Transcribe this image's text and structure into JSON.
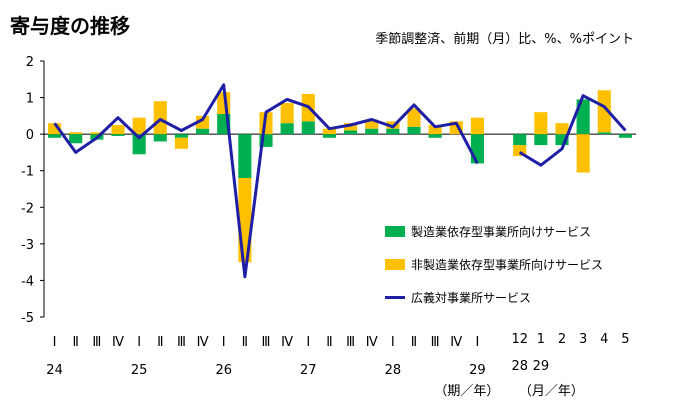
{
  "chart_data": {
    "type": "bar",
    "title": "寄与度の推移",
    "subtitle": "季節調整済、前期（月）比、%、%ポイント",
    "ylim": [
      -5,
      2
    ],
    "yticks": [
      "2",
      "1",
      "0",
      "-1",
      "-2",
      "-3",
      "-4",
      "-5"
    ],
    "categories": [
      "24Q1",
      "24Q2",
      "24Q3",
      "24Q4",
      "25Q1",
      "25Q2",
      "25Q3",
      "25Q4",
      "26Q1",
      "26Q2",
      "26Q3",
      "26Q4",
      "27Q1",
      "27Q2",
      "27Q3",
      "27Q4",
      "28Q1",
      "28Q2",
      "28Q3",
      "28Q4",
      "29Q1",
      "",
      "28-12",
      "29-1",
      "29-2",
      "29-3",
      "29-4",
      "29-5"
    ],
    "quarter_labels": [
      "Ⅰ",
      "Ⅱ",
      "Ⅲ",
      "Ⅳ",
      "Ⅰ",
      "Ⅱ",
      "Ⅲ",
      "Ⅳ",
      "Ⅰ",
      "Ⅱ",
      "Ⅲ",
      "Ⅳ",
      "Ⅰ",
      "Ⅱ",
      "Ⅲ",
      "Ⅳ",
      "Ⅰ",
      "Ⅱ",
      "Ⅲ",
      "Ⅳ",
      "Ⅰ"
    ],
    "year_labels": [
      {
        "text": "24",
        "index": 0
      },
      {
        "text": "25",
        "index": 4
      },
      {
        "text": "26",
        "index": 8
      },
      {
        "text": "27",
        "index": 12
      },
      {
        "text": "28",
        "index": 16
      },
      {
        "text": "29",
        "index": 20
      }
    ],
    "month_labels": [
      "12",
      "1",
      "2",
      "3",
      "4",
      "5"
    ],
    "month_year_labels": [
      {
        "text": "28",
        "index": 22
      },
      {
        "text": "29",
        "index": 23
      }
    ],
    "unit_label_quarter": "（期／年）",
    "unit_label_month": "（月／年）",
    "series": [
      {
        "name": "製造業依存型事業所向けサービス",
        "kind": "bar",
        "color": "#00b050",
        "values": [
          -0.1,
          -0.25,
          -0.15,
          -0.05,
          -0.55,
          -0.2,
          -0.1,
          0.15,
          0.55,
          -1.2,
          -0.35,
          0.3,
          0.35,
          -0.1,
          0.1,
          0.15,
          0.15,
          0.2,
          -0.1,
          0.0,
          -0.8,
          null,
          -0.3,
          -0.3,
          -0.3,
          0.95,
          0.05,
          -0.1
        ]
      },
      {
        "name": "非製造業依存型事業所向けサービス",
        "kind": "bar",
        "color": "#ffc000",
        "values": [
          0.3,
          0.05,
          0.05,
          0.25,
          0.45,
          0.9,
          -0.3,
          0.35,
          0.6,
          -2.3,
          0.6,
          0.55,
          0.75,
          0.15,
          0.2,
          0.25,
          0.2,
          0.5,
          0.25,
          0.35,
          0.45,
          null,
          -0.3,
          0.6,
          0.3,
          -1.05,
          1.15,
          0.0
        ]
      },
      {
        "name": "広義対事業所サービス",
        "kind": "line",
        "color": "#1f1fa6",
        "values": [
          0.3,
          -0.5,
          -0.1,
          0.45,
          -0.1,
          0.4,
          0.1,
          0.4,
          1.35,
          -3.9,
          0.6,
          0.95,
          0.75,
          0.15,
          0.25,
          0.4,
          0.2,
          0.8,
          0.2,
          0.3,
          -0.8,
          null,
          -0.5,
          -0.85,
          -0.4,
          1.05,
          0.75,
          0.1
        ]
      }
    ],
    "legend_position": "lower-right",
    "grid": false
  }
}
